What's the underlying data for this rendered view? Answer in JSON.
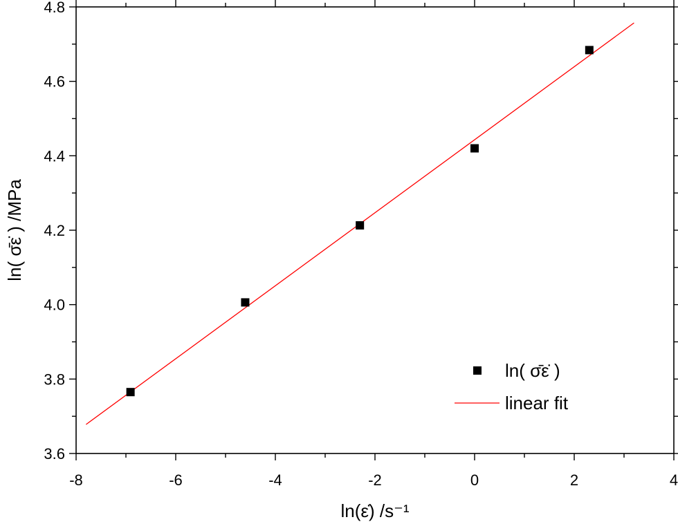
{
  "chart_data": {
    "type": "scatter",
    "xlabel": "ln(ε̇) /s⁻¹",
    "ylabel": "ln( σ̄ε̇ ) /MPa",
    "xlim": [
      -8,
      4
    ],
    "ylim": [
      3.6,
      4.8
    ],
    "xticks": [
      "-8",
      "-6",
      "-4",
      "-2",
      "0",
      "2",
      "4"
    ],
    "yticks": [
      "3.6",
      "3.8",
      "4.0",
      "4.2",
      "4.4",
      "4.6",
      "4.8"
    ],
    "grid": false,
    "legend_position": "bottom-right",
    "series": [
      {
        "name": "ln( σ̄ε̇ )",
        "type": "scatter",
        "marker": "square",
        "color": "#000000",
        "x": [
          -6.908,
          -4.605,
          -2.303,
          0,
          2.303
        ],
        "y": [
          3.765,
          4.006,
          4.213,
          4.42,
          4.684
        ]
      },
      {
        "name": "linear fit",
        "type": "line",
        "color": "#ff0000",
        "x": [
          -7.8,
          3.2
        ],
        "y": [
          3.678,
          4.757
        ]
      }
    ]
  }
}
